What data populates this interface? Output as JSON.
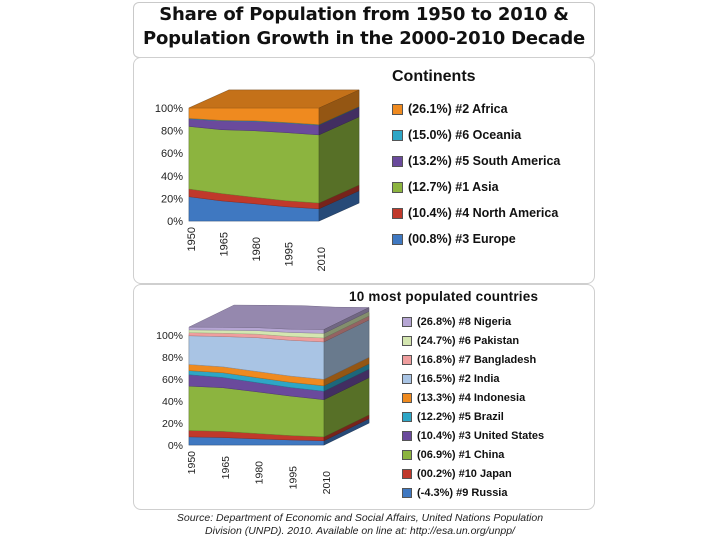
{
  "header": {
    "title_line1": "Share of Population from 1950 to 2010 &",
    "title_line2": "Population Growth in the 2000-2010 Decade"
  },
  "chart_data": [
    {
      "type": "area",
      "stacked": true,
      "style": "3d",
      "title": "Continents",
      "x": [
        "1950",
        "1965",
        "1980",
        "1995",
        "2010"
      ],
      "y_ticks": [
        "0%",
        "20%",
        "40%",
        "60%",
        "80%",
        "100%"
      ],
      "ylim": [
        0,
        100
      ],
      "series": [
        {
          "name": "Europe",
          "legend": "(00.8%) #3 Europe",
          "color": "#3f78c1",
          "values": [
            21.5,
            17.8,
            15.3,
            12.6,
            10.8
          ]
        },
        {
          "name": "North America",
          "legend": "(10.4%) #4 North America",
          "color": "#c0392b",
          "values": [
            6.8,
            6.5,
            5.7,
            5.3,
            5.1
          ]
        },
        {
          "name": "Asia",
          "legend": "(12.7%) #1 Asia",
          "color": "#8cb43f",
          "values": [
            55.4,
            56.5,
            58.9,
            60.3,
            60.3
          ]
        },
        {
          "name": "South America",
          "legend": "(13.2%) #5 South America",
          "color": "#6a4a9c",
          "values": [
            6.6,
            7.8,
            8.3,
            8.5,
            8.6
          ]
        },
        {
          "name": "Oceania",
          "legend": "(15.0%) #6 Oceania",
          "color": "#2ea6c6",
          "values": [
            0.5,
            0.5,
            0.5,
            0.5,
            0.5
          ]
        },
        {
          "name": "Africa",
          "legend": "(26.1%) #2 Africa",
          "color": "#ef8a1f",
          "values": [
            9.2,
            10.9,
            11.3,
            12.8,
            14.7
          ]
        }
      ]
    },
    {
      "type": "area",
      "stacked": true,
      "style": "3d",
      "title": "10 most populated countries",
      "x": [
        "1950",
        "1965",
        "1980",
        "1995",
        "2010"
      ],
      "y_ticks": [
        "0%",
        "20%",
        "40%",
        "60%",
        "80%",
        "100%"
      ],
      "ylim": [
        0,
        100
      ],
      "series": [
        {
          "name": "Russia",
          "legend": "(-4.3%) #9 Russia",
          "color": "#3f78c1",
          "values": [
            7.4,
            6.8,
            5.6,
            4.6,
            3.9
          ]
        },
        {
          "name": "Japan",
          "legend": "(00.2%) #10 Japan",
          "color": "#c0392b",
          "values": [
            5.8,
            5.6,
            4.9,
            4.0,
            3.5
          ]
        },
        {
          "name": "China",
          "legend": "(06.9%) #1 China",
          "color": "#8cb43f",
          "values": [
            40.3,
            39.7,
            37.9,
            35.9,
            33.8
          ]
        },
        {
          "name": "United States",
          "legend": "(10.4%) #3 United States",
          "color": "#6a4a9c",
          "values": [
            10.4,
            9.3,
            8.4,
            7.8,
            7.7
          ]
        },
        {
          "name": "Brazil",
          "legend": "(12.2%) #5 Brazil",
          "color": "#2ea6c6",
          "values": [
            3.7,
            4.3,
            4.5,
            4.7,
            4.9
          ]
        },
        {
          "name": "Indonesia",
          "legend": "(13.3%) #4 Indonesia",
          "color": "#ef8a1f",
          "values": [
            5.6,
            5.4,
            5.6,
            5.7,
            5.9
          ]
        },
        {
          "name": "India",
          "legend": "(16.5%) #2 India",
          "color": "#a9c4e4",
          "values": [
            26.1,
            27.5,
            30.7,
            32.5,
            34.0
          ]
        },
        {
          "name": "Bangladesh",
          "legend": "(16.8%) #7 Bangladesh",
          "color": "#ef9e9e",
          "values": [
            2.8,
            3.0,
            3.2,
            3.4,
            3.6
          ]
        },
        {
          "name": "Pakistan",
          "legend": "(24.7%) #6 Pakistan",
          "color": "#d4e6b0",
          "values": [
            2.6,
            2.8,
            3.2,
            3.7,
            4.2
          ]
        },
        {
          "name": "Nigeria",
          "legend": "(26.8%) #8 Nigeria",
          "color": "#b6a6d4",
          "values": [
            2.5,
            2.6,
            2.7,
            3.0,
            3.5
          ]
        }
      ]
    }
  ],
  "footer": {
    "source_line1": "Source: Department of Economic and Social Affairs, United Nations Population",
    "source_line2": "Division (UNPD). 2010. Available on line at: http://esa.un.org/unpp/"
  }
}
